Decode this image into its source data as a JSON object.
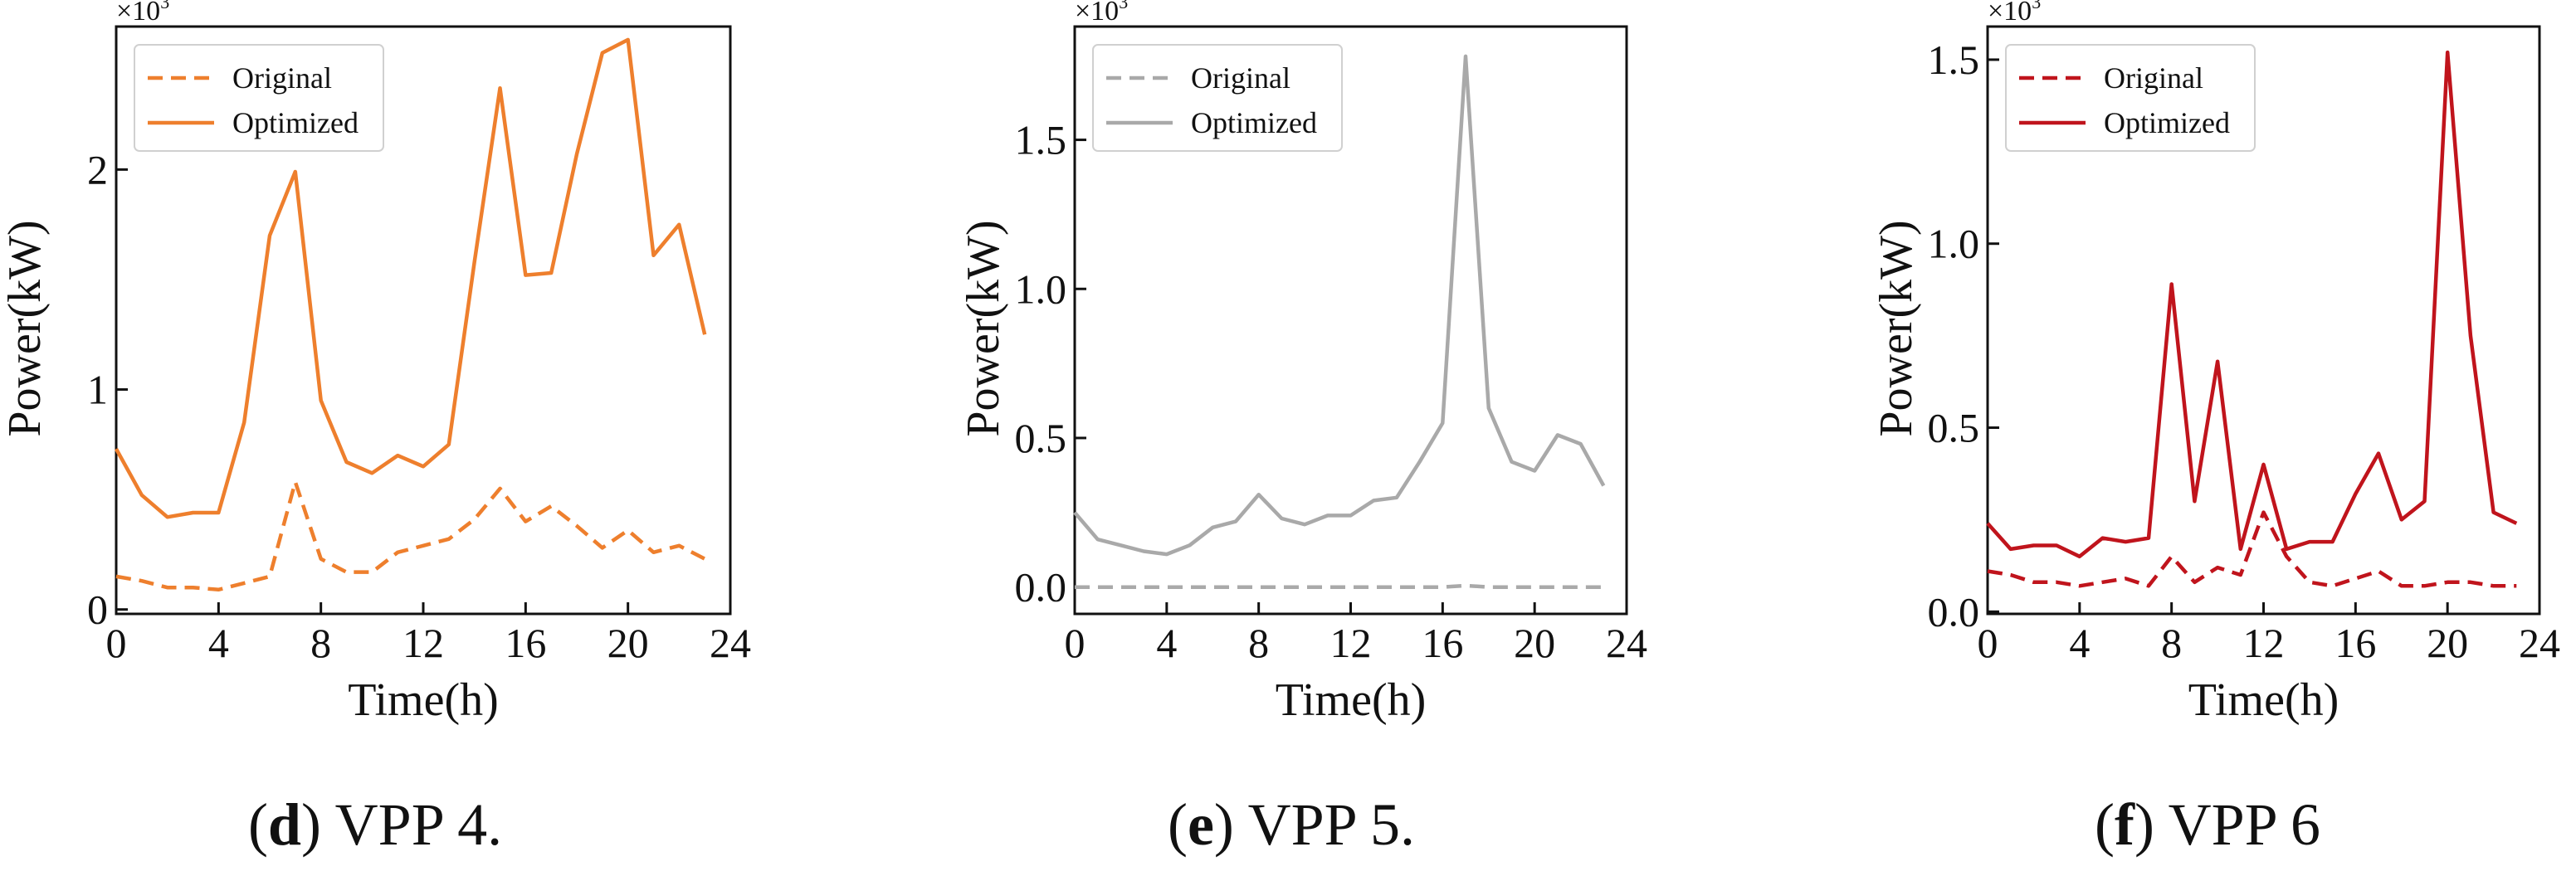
{
  "chart_data": [
    {
      "type": "line",
      "caption": {
        "letter": "d",
        "text": " VPP 4."
      },
      "multiplier": "×10",
      "exponent": "3",
      "xlabel": "Time(h)",
      "ylabel": "Power(kW)",
      "xlim": [
        0,
        24
      ],
      "ylim": [
        -0.02,
        2.65
      ],
      "xticks": [
        0,
        4,
        8,
        12,
        16,
        20,
        24
      ],
      "yticks": [
        0,
        1,
        2
      ],
      "ytick_labels": [
        "0",
        "1",
        "2"
      ],
      "legend_position": "top-left",
      "color": "#EE7F2D",
      "x": [
        0,
        1,
        2,
        3,
        4,
        5,
        6,
        7,
        8,
        9,
        10,
        11,
        12,
        13,
        14,
        15,
        16,
        17,
        18,
        19,
        20,
        21,
        22,
        23
      ],
      "series": [
        {
          "name": "Original",
          "style": "dashed",
          "values": [
            0.15,
            0.13,
            0.1,
            0.1,
            0.09,
            0.12,
            0.15,
            0.58,
            0.23,
            0.17,
            0.17,
            0.26,
            0.29,
            0.32,
            0.41,
            0.55,
            0.4,
            0.47,
            0.38,
            0.28,
            0.36,
            0.26,
            0.29,
            0.23
          ]
        },
        {
          "name": "Optimized",
          "style": "solid",
          "values": [
            0.73,
            0.52,
            0.42,
            0.44,
            0.44,
            0.85,
            1.7,
            1.99,
            0.95,
            0.67,
            0.62,
            0.7,
            0.65,
            0.75,
            1.58,
            2.37,
            1.52,
            1.53,
            2.07,
            2.53,
            2.59,
            1.61,
            1.75,
            1.25
          ]
        }
      ]
    },
    {
      "type": "line",
      "caption": {
        "letter": "e",
        "text": " VPP 5."
      },
      "multiplier": "×10",
      "exponent": "3",
      "xlabel": "Time(h)",
      "ylabel": "Power(kW)",
      "xlim": [
        0,
        24
      ],
      "ylim": [
        -0.09,
        1.88
      ],
      "xticks": [
        0,
        4,
        8,
        12,
        16,
        20,
        24
      ],
      "yticks": [
        0,
        0.5,
        1.0,
        1.5
      ],
      "ytick_labels": [
        "0.0",
        "0.5",
        "1.0",
        "1.5"
      ],
      "legend_position": "top-left",
      "color": "#A9A9A9",
      "x": [
        0,
        1,
        2,
        3,
        4,
        5,
        6,
        7,
        8,
        9,
        10,
        11,
        12,
        13,
        14,
        15,
        16,
        17,
        18,
        19,
        20,
        21,
        22,
        23
      ],
      "series": [
        {
          "name": "Original",
          "style": "dashed",
          "values": [
            0.0,
            0.0,
            0.0,
            0.0,
            0.0,
            0.0,
            0.0,
            0.0,
            0.0,
            0.0,
            0.0,
            0.0,
            0.0,
            0.0,
            0.0,
            0.0,
            0.0,
            0.005,
            0.0,
            0.0,
            0.0,
            0.0,
            0.0,
            0.0
          ]
        },
        {
          "name": "Optimized",
          "style": "solid",
          "values": [
            0.25,
            0.16,
            0.14,
            0.12,
            0.11,
            0.14,
            0.2,
            0.22,
            0.31,
            0.23,
            0.21,
            0.24,
            0.24,
            0.29,
            0.3,
            0.42,
            0.55,
            1.78,
            0.6,
            0.42,
            0.39,
            0.51,
            0.48,
            0.34
          ]
        }
      ]
    },
    {
      "type": "line",
      "caption": {
        "letter": "f",
        "text": " VPP 6"
      },
      "multiplier": "×10",
      "exponent": "3",
      "xlabel": "Time(h)",
      "ylabel": "Power(kW)",
      "xlim": [
        0,
        24
      ],
      "ylim": [
        -0.006,
        1.59
      ],
      "xticks": [
        0,
        4,
        8,
        12,
        16,
        20,
        24
      ],
      "yticks": [
        0,
        0.5,
        1.0,
        1.5
      ],
      "ytick_labels": [
        "0.0",
        "0.5",
        "1.0",
        "1.5"
      ],
      "legend_position": "top-left",
      "color": "#C0141C",
      "x": [
        0,
        1,
        2,
        3,
        4,
        5,
        6,
        7,
        8,
        9,
        10,
        11,
        12,
        13,
        14,
        15,
        16,
        17,
        18,
        19,
        20,
        21,
        22,
        23
      ],
      "series": [
        {
          "name": "Original",
          "style": "dashed",
          "values": [
            0.11,
            0.1,
            0.08,
            0.08,
            0.07,
            0.08,
            0.09,
            0.07,
            0.15,
            0.08,
            0.12,
            0.1,
            0.27,
            0.15,
            0.08,
            0.07,
            0.09,
            0.11,
            0.07,
            0.07,
            0.08,
            0.08,
            0.07,
            0.07
          ]
        },
        {
          "name": "Optimized",
          "style": "solid",
          "values": [
            0.24,
            0.17,
            0.18,
            0.18,
            0.15,
            0.2,
            0.19,
            0.2,
            0.89,
            0.3,
            0.68,
            0.17,
            0.4,
            0.17,
            0.19,
            0.19,
            0.32,
            0.43,
            0.25,
            0.3,
            1.52,
            0.75,
            0.27,
            0.24
          ]
        }
      ]
    }
  ]
}
